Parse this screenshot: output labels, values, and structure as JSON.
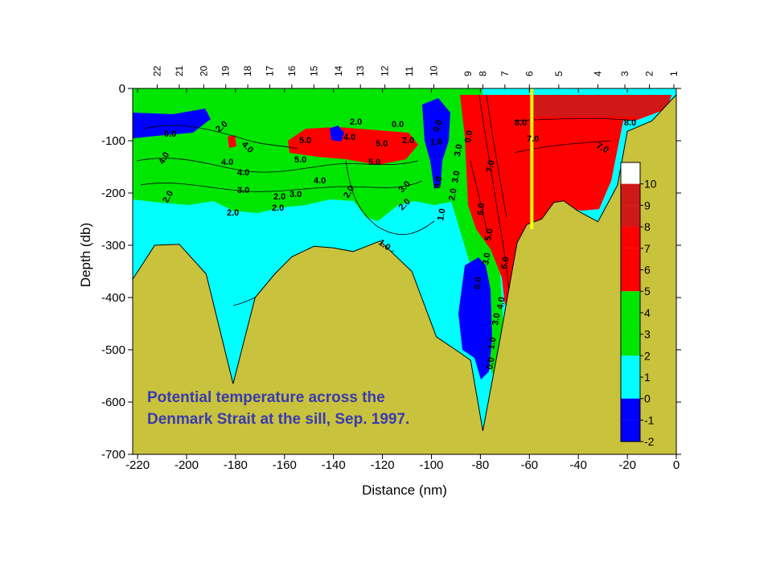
{
  "chart_data": {
    "type": "heatmap",
    "title": "Potential temperature across the Denmark Strait at the sill, Sep. 1997.",
    "xlabel": "Distance (nm)",
    "ylabel": "Depth (db)",
    "xlim": [
      -222,
      0
    ],
    "ylim": [
      -700,
      0
    ],
    "x_ticks": [
      -220,
      -200,
      -180,
      -160,
      -140,
      -120,
      -100,
      -80,
      -60,
      -40,
      -20,
      0
    ],
    "y_ticks": [
      0,
      -100,
      -200,
      -300,
      -400,
      -500,
      -600,
      -700
    ],
    "stations": [
      {
        "label": "22",
        "x": -212
      },
      {
        "label": "21",
        "x": -203
      },
      {
        "label": "20",
        "x": -193
      },
      {
        "label": "19",
        "x": -184
      },
      {
        "label": "18",
        "x": -175
      },
      {
        "label": "17",
        "x": -166
      },
      {
        "label": "16",
        "x": -157
      },
      {
        "label": "15",
        "x": -148
      },
      {
        "label": "14",
        "x": -138
      },
      {
        "label": "13",
        "x": -129
      },
      {
        "label": "12",
        "x": -119
      },
      {
        "label": "11",
        "x": -109
      },
      {
        "label": "10",
        "x": -99
      },
      {
        "label": "9",
        "x": -85
      },
      {
        "label": "8",
        "x": -79
      },
      {
        "label": "7",
        "x": -70
      },
      {
        "label": "6",
        "x": -60
      },
      {
        "label": "5",
        "x": -48
      },
      {
        "label": "4",
        "x": -32
      },
      {
        "label": "3",
        "x": -21
      },
      {
        "label": "2",
        "x": -11
      },
      {
        "label": "1",
        "x": -1
      }
    ],
    "colorbar": {
      "levels": [
        -2,
        -1,
        0,
        1,
        2,
        3,
        4,
        5,
        6,
        7,
        8,
        9,
        10
      ],
      "labels": [
        "10",
        "9",
        "8",
        "7",
        "6",
        "5",
        "4",
        "3",
        "2",
        "1",
        "0",
        "-1",
        "-2"
      ],
      "band_colors": [
        "#ffffff",
        "#d01818",
        "#d01818",
        "#ff0000",
        "#ff0000",
        "#ff0000",
        "#00e600",
        "#00e600",
        "#00e600",
        "#00ffff",
        "#00ffff",
        "#0000ff",
        "#0000ff"
      ]
    },
    "contour_labels": [
      "-1.0",
      "0.0",
      "1.0",
      "2.0",
      "3.0",
      "4.0",
      "5.0",
      "6.0",
      "7.0",
      "8.0"
    ],
    "bottom_topography": [
      [
        -222,
        -365
      ],
      [
        -213,
        -300
      ],
      [
        -203,
        -298
      ],
      [
        -192,
        -355
      ],
      [
        -181,
        -565
      ],
      [
        -172,
        -400
      ],
      [
        -164,
        -355
      ],
      [
        -157,
        -322
      ],
      [
        -148,
        -302
      ],
      [
        -140,
        -305
      ],
      [
        -132,
        -312
      ],
      [
        -121,
        -292
      ],
      [
        -108,
        -350
      ],
      [
        -98,
        -475
      ],
      [
        -87,
        -510
      ],
      [
        -84,
        -520
      ],
      [
        -79,
        -655
      ],
      [
        -72,
        -480
      ],
      [
        -65,
        -295
      ],
      [
        -61,
        -260
      ],
      [
        -55,
        -250
      ],
      [
        -50,
        -218
      ],
      [
        -46,
        -215
      ],
      [
        -40,
        -235
      ],
      [
        -32,
        -255
      ],
      [
        -24,
        -185
      ],
      [
        -20,
        -82
      ],
      [
        -10,
        -62
      ],
      [
        0,
        -12
      ]
    ],
    "yellow_line_x": -59,
    "colors": {
      "bottom": "#c9c23d",
      "warm": "#ff0000",
      "warmest": "#d01818",
      "mid": "#00e600",
      "cool": "#00ffff",
      "cold": "#0000ff",
      "marker_line": "#ffff00",
      "title_text": "#3a3ab0"
    }
  }
}
